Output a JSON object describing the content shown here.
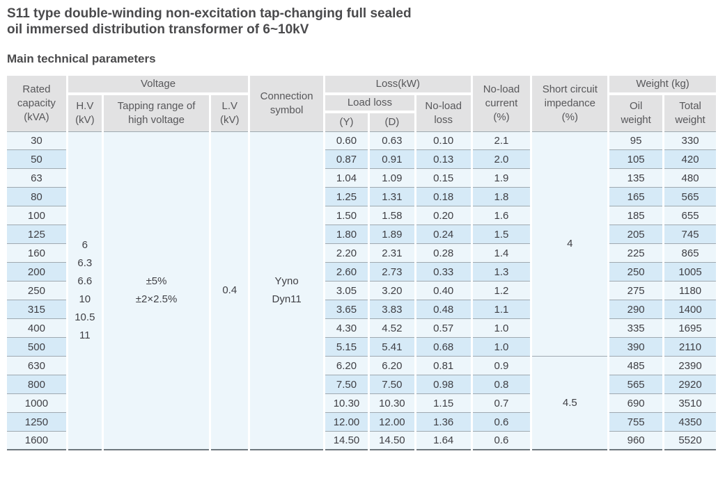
{
  "page": {
    "title": "S11 type double-winding non-excitation tap-changing full sealed\noil immersed distribution transformer of 6~10kV",
    "subtitle": "Main technical parameters"
  },
  "colors": {
    "header_bg": "#e2e2e3",
    "header_text": "#57575a",
    "row_light": "#edf6fb",
    "row_dark": "#d6eaf7",
    "merged_cell_bg": "#e9f4fa",
    "grid_line": "#9fa9b0",
    "table_bottom_line": "#6e777d",
    "body_text": "#3f3f44"
  },
  "table": {
    "headers": {
      "rated_capacity": "Rated\ncapacity\n(kVA)",
      "voltage": "Voltage",
      "hv": "H.V\n(kV)",
      "tapping_range": "Tapping range of\nhigh voltage",
      "lv": "L.V\n(kV)",
      "connection_symbol": "Connection\nsymbol",
      "loss": "Loss(kW)",
      "load_loss": "Load loss",
      "load_loss_y": "(Y)",
      "load_loss_d": "(D)",
      "no_load_loss": "No-load\nloss",
      "no_load_current": "No-load\ncurrent\n(%)",
      "short_circuit_impedance": "Short circuit\nimpedance\n(%)",
      "weight": "Weight (kg)",
      "oil_weight": "Oil\nweight",
      "total_weight": "Total\nweight"
    },
    "merged": {
      "hv_values": "6\n6.3\n6.6\n10\n10.5\n11",
      "tapping_values": "±5%\n±2×2.5%",
      "lv_value": "0.4",
      "connection_values": "Yyno\nDyn11",
      "impedance_low": "4",
      "impedance_low_rowspan": 12,
      "impedance_high": "4.5",
      "impedance_high_rowspan": 5
    },
    "rows": [
      {
        "capacity": "30",
        "load_loss_y": "0.60",
        "load_loss_d": "0.63",
        "no_load_loss": "0.10",
        "no_load_current": "2.1",
        "oil_weight": "95",
        "total_weight": "330"
      },
      {
        "capacity": "50",
        "load_loss_y": "0.87",
        "load_loss_d": "0.91",
        "no_load_loss": "0.13",
        "no_load_current": "2.0",
        "oil_weight": "105",
        "total_weight": "420"
      },
      {
        "capacity": "63",
        "load_loss_y": "1.04",
        "load_loss_d": "1.09",
        "no_load_loss": "0.15",
        "no_load_current": "1.9",
        "oil_weight": "135",
        "total_weight": "480"
      },
      {
        "capacity": "80",
        "load_loss_y": "1.25",
        "load_loss_d": "1.31",
        "no_load_loss": "0.18",
        "no_load_current": "1.8",
        "oil_weight": "165",
        "total_weight": "565"
      },
      {
        "capacity": "100",
        "load_loss_y": "1.50",
        "load_loss_d": "1.58",
        "no_load_loss": "0.20",
        "no_load_current": "1.6",
        "oil_weight": "185",
        "total_weight": "655"
      },
      {
        "capacity": "125",
        "load_loss_y": "1.80",
        "load_loss_d": "1.89",
        "no_load_loss": "0.24",
        "no_load_current": "1.5",
        "oil_weight": "205",
        "total_weight": "745"
      },
      {
        "capacity": "160",
        "load_loss_y": "2.20",
        "load_loss_d": "2.31",
        "no_load_loss": "0.28",
        "no_load_current": "1.4",
        "oil_weight": "225",
        "total_weight": "865"
      },
      {
        "capacity": "200",
        "load_loss_y": "2.60",
        "load_loss_d": "2.73",
        "no_load_loss": "0.33",
        "no_load_current": "1.3",
        "oil_weight": "250",
        "total_weight": "1005"
      },
      {
        "capacity": "250",
        "load_loss_y": "3.05",
        "load_loss_d": "3.20",
        "no_load_loss": "0.40",
        "no_load_current": "1.2",
        "oil_weight": "275",
        "total_weight": "1180"
      },
      {
        "capacity": "315",
        "load_loss_y": "3.65",
        "load_loss_d": "3.83",
        "no_load_loss": "0.48",
        "no_load_current": "1.1",
        "oil_weight": "290",
        "total_weight": "1400"
      },
      {
        "capacity": "400",
        "load_loss_y": "4.30",
        "load_loss_d": "4.52",
        "no_load_loss": "0.57",
        "no_load_current": "1.0",
        "oil_weight": "335",
        "total_weight": "1695"
      },
      {
        "capacity": "500",
        "load_loss_y": "5.15",
        "load_loss_d": "5.41",
        "no_load_loss": "0.68",
        "no_load_current": "1.0",
        "oil_weight": "390",
        "total_weight": "2110"
      },
      {
        "capacity": "630",
        "load_loss_y": "6.20",
        "load_loss_d": "6.20",
        "no_load_loss": "0.81",
        "no_load_current": "0.9",
        "oil_weight": "485",
        "total_weight": "2390"
      },
      {
        "capacity": "800",
        "load_loss_y": "7.50",
        "load_loss_d": "7.50",
        "no_load_loss": "0.98",
        "no_load_current": "0.8",
        "oil_weight": "565",
        "total_weight": "2920"
      },
      {
        "capacity": "1000",
        "load_loss_y": "10.30",
        "load_loss_d": "10.30",
        "no_load_loss": "1.15",
        "no_load_current": "0.7",
        "oil_weight": "690",
        "total_weight": "3510"
      },
      {
        "capacity": "1250",
        "load_loss_y": "12.00",
        "load_loss_d": "12.00",
        "no_load_loss": "1.36",
        "no_load_current": "0.6",
        "oil_weight": "755",
        "total_weight": "4350"
      },
      {
        "capacity": "1600",
        "load_loss_y": "14.50",
        "load_loss_d": "14.50",
        "no_load_loss": "1.64",
        "no_load_current": "0.6",
        "oil_weight": "960",
        "total_weight": "5520"
      }
    ]
  }
}
